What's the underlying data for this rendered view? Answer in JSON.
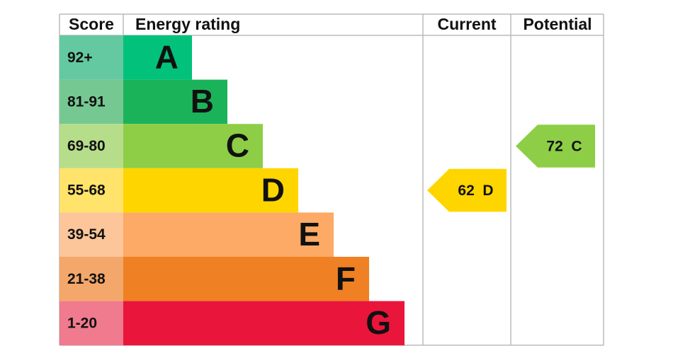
{
  "headers": {
    "score": "Score",
    "rating": "Energy rating",
    "current": "Current",
    "potential": "Potential"
  },
  "rows": [
    {
      "score": "92+",
      "band": "A",
      "color": "#02c27b",
      "score_color": "#64c9a0"
    },
    {
      "score": "81-91",
      "band": "B",
      "color": "#1bb35a",
      "score_color": "#76c892"
    },
    {
      "score": "69-80",
      "band": "C",
      "color": "#8dce46",
      "score_color": "#b6dd8a"
    },
    {
      "score": "55-68",
      "band": "D",
      "color": "#ffd500",
      "score_color": "#ffe36a"
    },
    {
      "score": "39-54",
      "band": "E",
      "color": "#fcaa65",
      "score_color": "#fcc69a"
    },
    {
      "score": "21-38",
      "band": "F",
      "color": "#ef8023",
      "score_color": "#f4a76a"
    },
    {
      "score": "1-20",
      "band": "G",
      "color": "#e9153b",
      "score_color": "#f07a8e"
    }
  ],
  "current": {
    "value": 62,
    "band": "D"
  },
  "potential": {
    "value": 72,
    "band": "C"
  }
}
